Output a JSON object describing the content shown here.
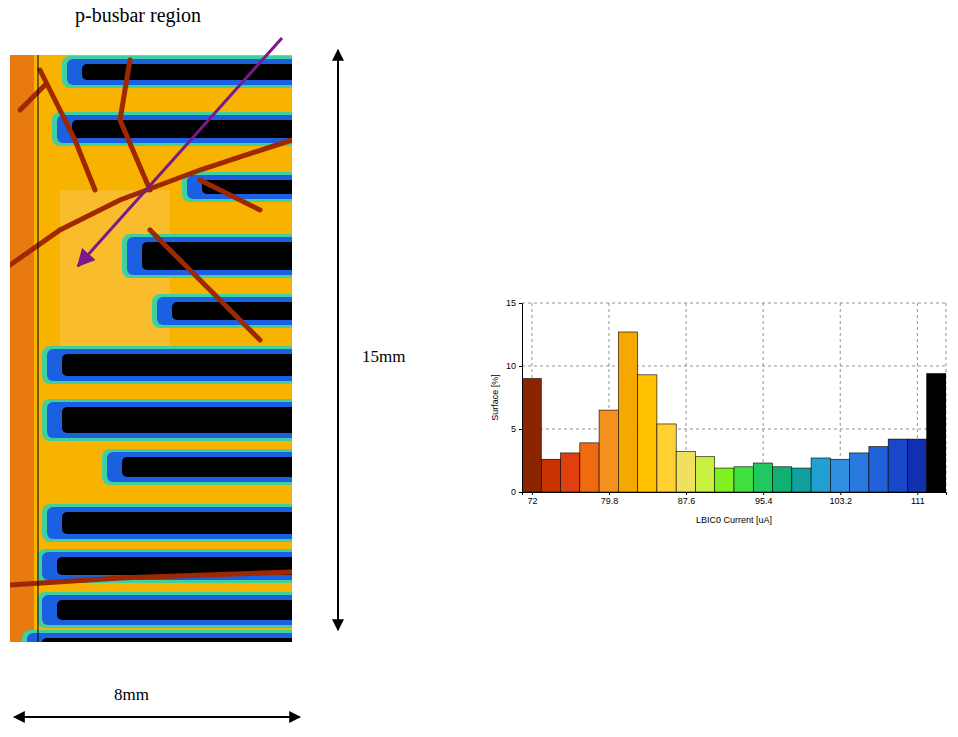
{
  "chart_data": {
    "type": "histogram",
    "x_label": "LBIC0 Current [uA]",
    "y_label": "Surface [%]",
    "bins": [
      71.0,
      72.95,
      74.9,
      76.85,
      78.8,
      80.75,
      82.7,
      84.65,
      86.6,
      88.55,
      90.5,
      92.45,
      94.4,
      96.35,
      98.3,
      100.25,
      102.2,
      104.15,
      106.1,
      108.05,
      110.0,
      111.95,
      113.9
    ],
    "counts": [
      9.0,
      2.6,
      3.1,
      3.9,
      6.5,
      12.7,
      9.3,
      5.4,
      3.2,
      2.8,
      1.9,
      2.0,
      2.3,
      2.0,
      1.9,
      2.7,
      2.6,
      3.1,
      3.6,
      4.2,
      4.2,
      9.4
    ],
    "colors": [
      "#8b2500",
      "#c83200",
      "#e04010",
      "#f06a10",
      "#f5901c",
      "#f5a800",
      "#ffc000",
      "#ffd030",
      "#f0e060",
      "#c8f040",
      "#80f020",
      "#40e040",
      "#20c860",
      "#10b070",
      "#10a0a0",
      "#20a0d0",
      "#3090e0",
      "#2878e0",
      "#2060d8",
      "#1848c8",
      "#1030b0",
      "#000000"
    ],
    "xlim": [
      71.0,
      113.9
    ],
    "xticks": [
      72,
      79.8,
      87.6,
      95.4,
      103.2,
      111
    ],
    "ylim": [
      0,
      15
    ],
    "yticks": [
      0,
      5,
      10,
      15
    ],
    "grid": true
  },
  "map": {
    "annotation": "p-busbar region",
    "height_label": "15mm",
    "width_label": "8mm"
  }
}
